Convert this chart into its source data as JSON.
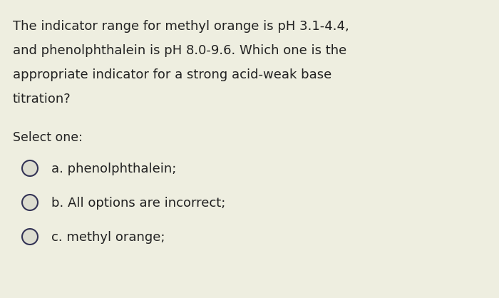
{
  "background_color": "#eeeee0",
  "question_lines": [
    "The indicator range for methyl orange is pH 3.1-4.4,",
    "and phenolphthalein is pH 8.0-9.6. Which one is the",
    "appropriate indicator for a strong acid-weak base",
    "titration?"
  ],
  "select_label": "Select one:",
  "options": [
    "a. phenolphthalein;",
    "b. All options are incorrect;",
    "c. methyl orange;"
  ],
  "text_color": "#222222",
  "question_fontsize": 13.0,
  "select_fontsize": 12.5,
  "option_fontsize": 13.0,
  "circle_color": "#333355",
  "circle_linewidth": 1.5,
  "circle_facecolor": "#ddddd0"
}
